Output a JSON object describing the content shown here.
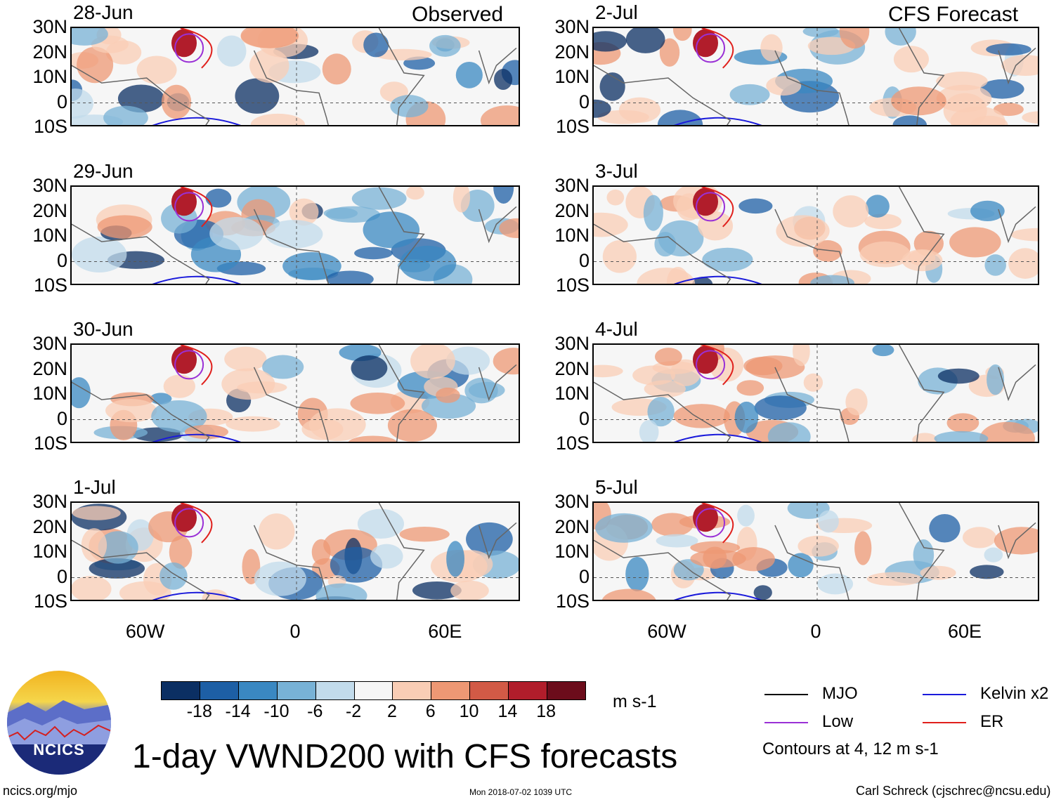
{
  "chart_data": {
    "type": "heatmap",
    "title": "1-day VWND200 with CFS forecasts",
    "variable": "VWND200",
    "units": "m s-1",
    "columns": [
      {
        "label": "Observed",
        "panels": [
          "28-Jun",
          "29-Jun",
          "30-Jun",
          "1-Jul"
        ]
      },
      {
        "label": "CFS Forecast",
        "panels": [
          "2-Jul",
          "3-Jul",
          "4-Jul",
          "5-Jul"
        ]
      }
    ],
    "y_ticks": [
      "30N",
      "20N",
      "10N",
      "0",
      "10S"
    ],
    "y_range": [
      -10,
      30
    ],
    "x_ticks": [
      "60W",
      "0",
      "60E"
    ],
    "x_range": [
      -90,
      90
    ],
    "colorbar": {
      "labels": [
        "-18",
        "-14",
        "-10",
        "-6",
        "-2",
        "2",
        "6",
        "10",
        "14",
        "18"
      ],
      "colors": [
        "#0b2f63",
        "#1d5fa5",
        "#3a88c2",
        "#78b2d6",
        "#c2dbeb",
        "#f6f6f6",
        "#f9cdb5",
        "#ee9874",
        "#d25a46",
        "#b11d2b",
        "#6c0c1b"
      ]
    },
    "contour_legend": [
      {
        "name": "MJO",
        "color": "#000000"
      },
      {
        "name": "Kelvin x2",
        "color": "#1a1adb"
      },
      {
        "name": "Low",
        "color": "#9a30d6"
      },
      {
        "name": "ER",
        "color": "#e0201c"
      }
    ],
    "contour_note": "Contours at 4, 12 m s-1"
  },
  "footer": {
    "logo_text": "NCICS",
    "site": "ncics.org/mjo",
    "timestamp": "Mon 2018-07-02 1039 UTC",
    "author": "Carl Schreck (cjschrec@ncsu.edu)"
  }
}
